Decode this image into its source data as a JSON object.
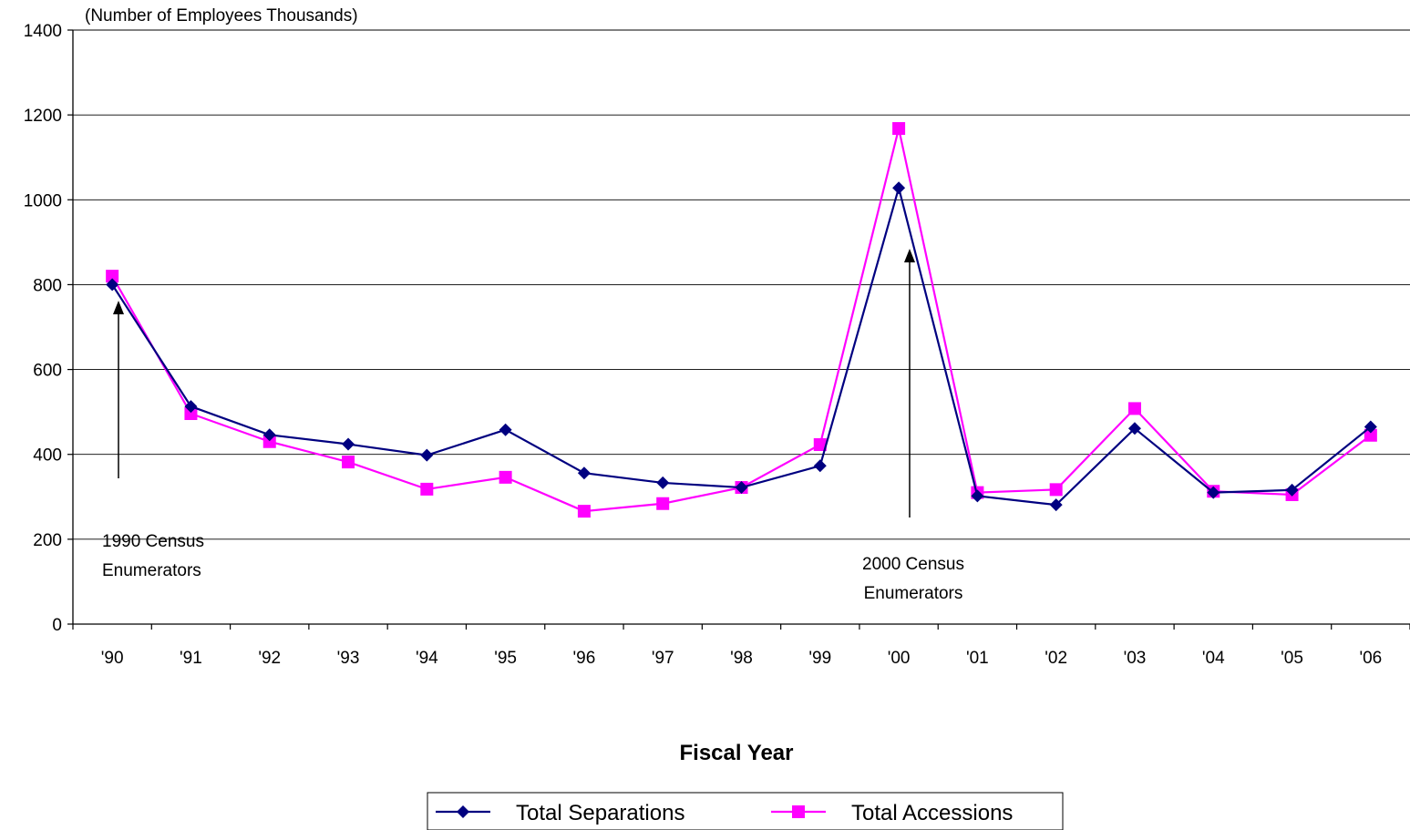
{
  "chart_data": {
    "type": "line",
    "unit_label": "(Number of Employees Thousands)",
    "xlabel": "Fiscal Year",
    "ylabel": "",
    "ylim": [
      0,
      1400
    ],
    "y_ticks": [
      0,
      200,
      400,
      600,
      800,
      1000,
      1200,
      1400
    ],
    "y_tick_labels": [
      "0",
      "200",
      "400",
      "600",
      "800",
      "1000",
      "1200",
      "1400"
    ],
    "categories": [
      "'90",
      "'91",
      "'92",
      "'93",
      "'94",
      "'95",
      "'96",
      "'97",
      "'98",
      "'99",
      "'00",
      "'01",
      "'02",
      "'03",
      "'04",
      "'05",
      "'06"
    ],
    "series": [
      {
        "name": "Total Separations",
        "color": "#000080",
        "marker": "diamond",
        "values": [
          800,
          513,
          446,
          424,
          398,
          458,
          356,
          333,
          322,
          373,
          1028,
          302,
          281,
          461,
          310,
          316,
          465
        ]
      },
      {
        "name": "Total Accessions",
        "color": "#ff00ff",
        "marker": "square",
        "values": [
          820,
          496,
          430,
          382,
          318,
          346,
          266,
          284,
          322,
          423,
          1168,
          310,
          317,
          508,
          313,
          305,
          445
        ]
      }
    ],
    "grid": "horizontal",
    "legend_position": "bottom-center",
    "annotations": [
      {
        "text_lines": [
          "1990 Census",
          "Enumerators"
        ],
        "category": "'90"
      },
      {
        "text_lines": [
          "2000 Census",
          "Enumerators"
        ],
        "category": "'00"
      }
    ]
  }
}
